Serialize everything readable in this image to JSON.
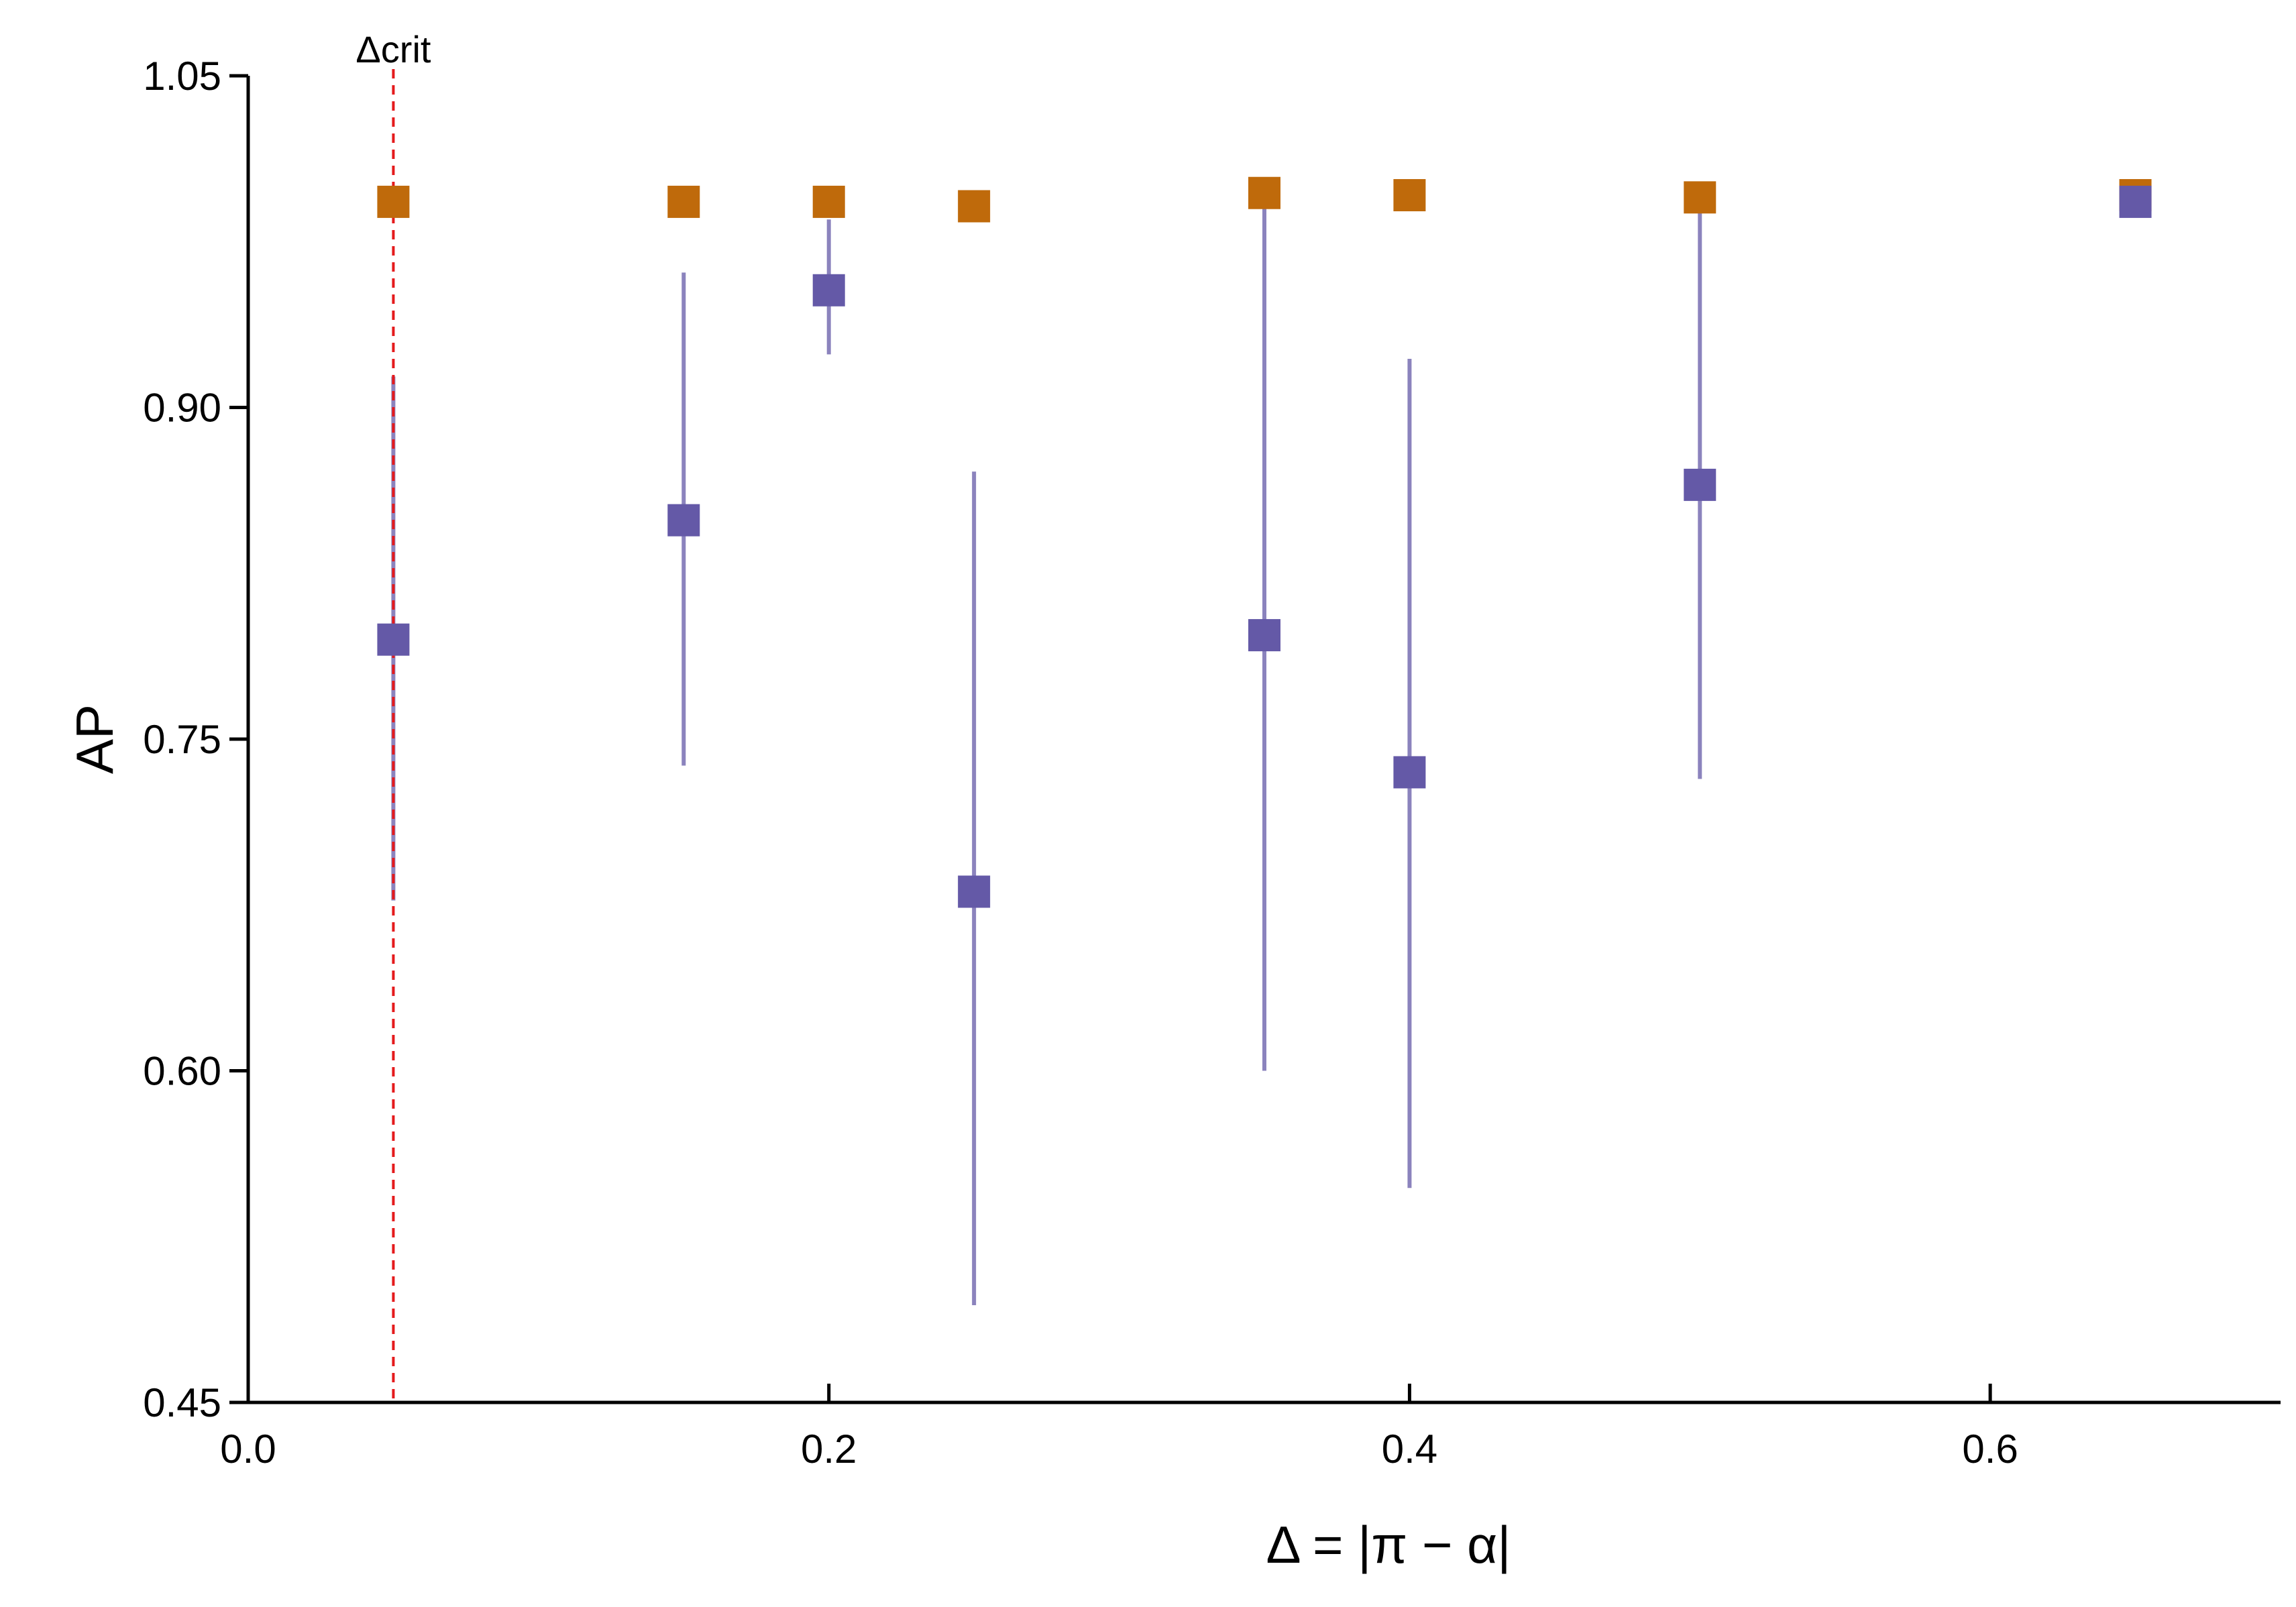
{
  "chart_data": {
    "type": "scatter",
    "xlabel": "Δ = |π − α|",
    "ylabel": "AP",
    "xlim": [
      0.0,
      0.7
    ],
    "ylim": [
      0.45,
      1.05
    ],
    "x_ticks": [
      "0.0",
      "0.2",
      "0.4",
      "0.6"
    ],
    "x_tick_values": [
      0.0,
      0.2,
      0.4,
      0.6
    ],
    "y_ticks": [
      "0.45",
      "0.60",
      "0.75",
      "0.90",
      "1.05"
    ],
    "y_tick_values": [
      0.45,
      0.6,
      0.75,
      0.9,
      1.05
    ],
    "grid": false,
    "reference_line": {
      "x": 0.05,
      "label": "Δcrit",
      "color": "#e41a1c",
      "style": "dashed"
    },
    "series": [
      {
        "color": "#bf6a0b",
        "marker": "square",
        "x": [
          0.05,
          0.15,
          0.2,
          0.25,
          0.35,
          0.4,
          0.5,
          0.65
        ],
        "y": [
          0.993,
          0.993,
          0.993,
          0.991,
          0.997,
          0.996,
          0.995,
          0.996
        ],
        "err_low": [
          0.993,
          0.991,
          0.99,
          0.988,
          0.993,
          0.992,
          0.993,
          0.994
        ],
        "err_high": [
          0.994,
          0.996,
          0.997,
          0.994,
          0.999,
          0.999,
          0.998,
          0.998
        ]
      },
      {
        "color": "#6459a7",
        "marker": "square",
        "x": [
          0.05,
          0.15,
          0.2,
          0.25,
          0.35,
          0.4,
          0.5,
          0.65
        ],
        "y": [
          0.795,
          0.849,
          0.953,
          0.681,
          0.797,
          0.735,
          0.865,
          0.993
        ],
        "err_low": [
          0.677,
          0.738,
          0.924,
          0.494,
          0.6,
          0.547,
          0.732,
          0.988
        ],
        "err_high": [
          0.914,
          0.961,
          0.985,
          0.871,
          0.997,
          0.922,
          0.998,
          0.998
        ]
      }
    ]
  }
}
